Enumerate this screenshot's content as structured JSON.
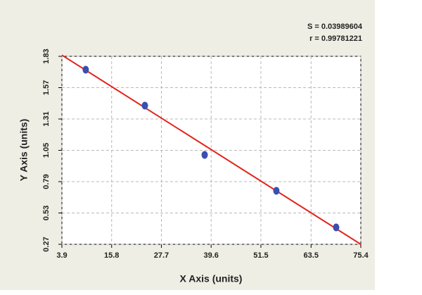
{
  "chart_data": {
    "type": "scatter",
    "xlabel": "X Axis (units)",
    "ylabel": "Y Axis (units)",
    "annotations": [
      "S = 0.03989604",
      "r = 0.99781221"
    ],
    "series": [
      {
        "color": "#3a4fb0",
        "x": [
          9.6,
          23.75,
          38.05,
          55.2,
          69.5
        ],
        "values": [
          1.719,
          1.421,
          1.012,
          0.714,
          0.41
        ]
      }
    ],
    "fit": {
      "color": "#e2231a",
      "x": [
        3.9,
        75.4
      ],
      "values": [
        1.84,
        0.27
      ]
    },
    "xlim": [
      3.9,
      75.4
    ],
    "ylim": [
      0.27,
      1.83
    ],
    "xticks": [
      3.9,
      15.8,
      27.7,
      39.6,
      51.5,
      63.5,
      75.4
    ],
    "yticks": [
      0.27,
      0.53,
      0.79,
      1.05,
      1.31,
      1.57,
      1.83
    ],
    "grid": true
  }
}
